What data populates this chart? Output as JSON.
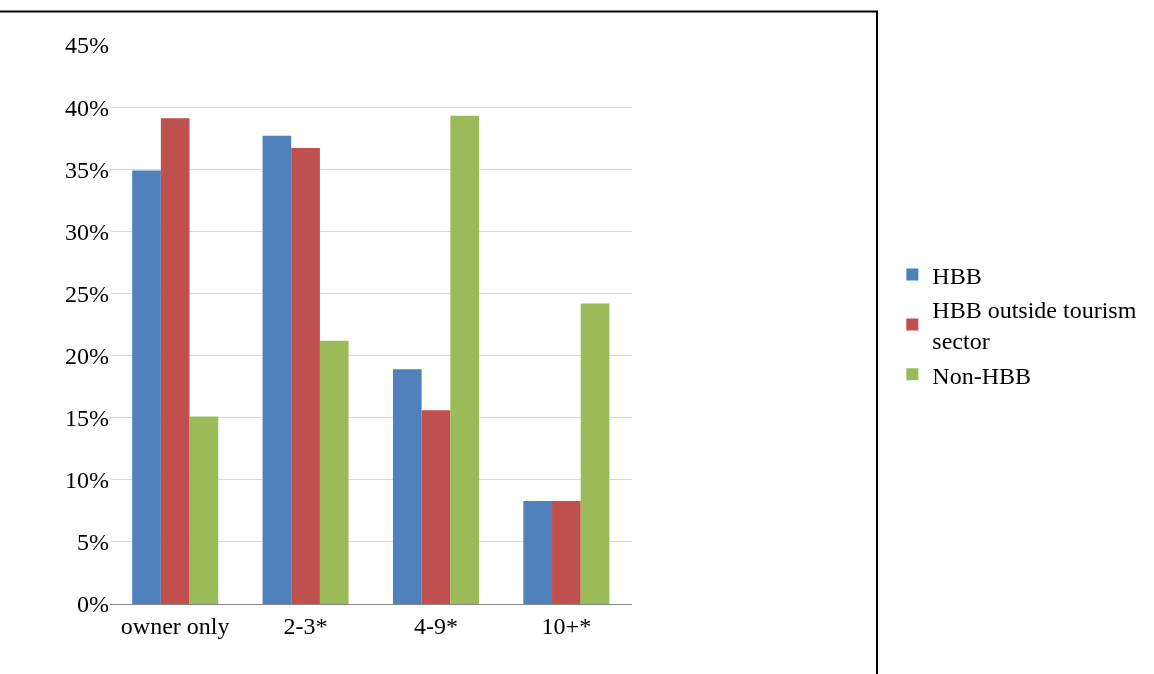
{
  "chart_data": {
    "type": "bar",
    "categories": [
      "owner only",
      "2-3*",
      "4-9*",
      "10+*"
    ],
    "series": [
      {
        "name": "HBB",
        "color": "#4f81bd",
        "values": [
          34.9,
          37.7,
          18.9,
          8.3
        ]
      },
      {
        "name": "HBB outside tourism sector",
        "color": "#c0504d",
        "values": [
          39.1,
          36.7,
          15.6,
          8.3
        ]
      },
      {
        "name": "Non-HBB",
        "color": "#9bbb59",
        "values": [
          15.1,
          21.2,
          39.3,
          24.2
        ]
      }
    ],
    "ylim": [
      0,
      45
    ],
    "yticks": [
      {
        "value": 0,
        "label": "0%"
      },
      {
        "value": 5,
        "label": "5%"
      },
      {
        "value": 10,
        "label": "10%"
      },
      {
        "value": 15,
        "label": "15%"
      },
      {
        "value": 20,
        "label": "20%"
      },
      {
        "value": 25,
        "label": "25%"
      },
      {
        "value": 30,
        "label": "30%"
      },
      {
        "value": 35,
        "label": "35%"
      },
      {
        "value": 40,
        "label": "40%"
      },
      {
        "value": 45,
        "label": "45%"
      }
    ],
    "grid": "y",
    "legend": "right"
  }
}
